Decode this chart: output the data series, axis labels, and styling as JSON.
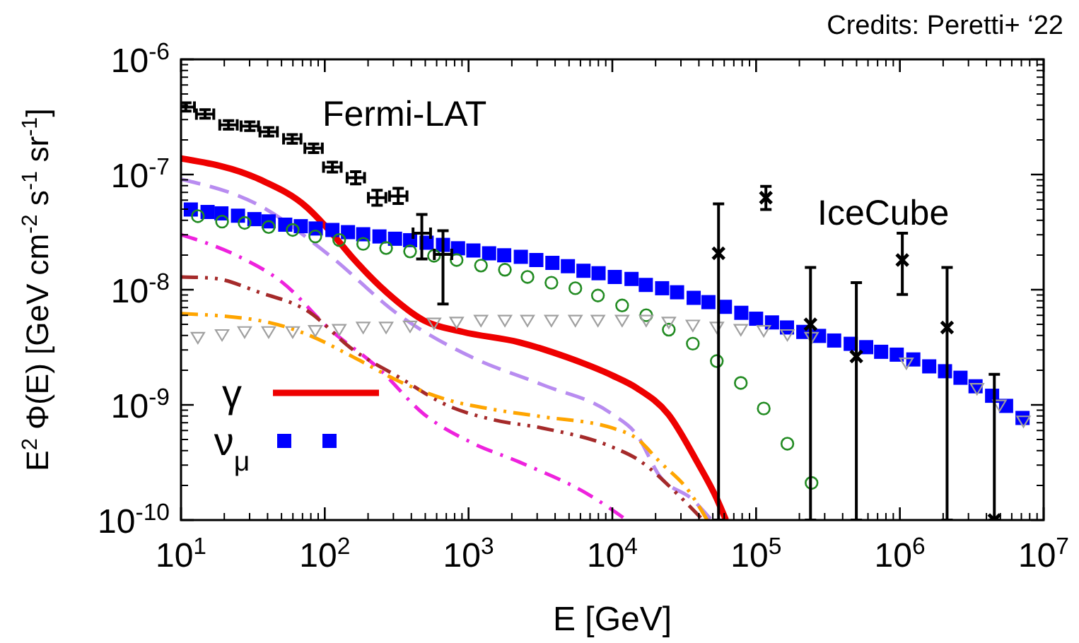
{
  "chart_data": {
    "type": "line",
    "xlabel": "E [GeV]",
    "ylabel": "E$^{2}$ Φ(E) [GeV cm$^{-2}$ s$^{-1}$ sr$^{-1}$]",
    "log": "xy",
    "xlim": [
      10,
      10000000
    ],
    "ylim": [
      1e-10,
      1e-06
    ],
    "xticks": [
      {
        "value": 10,
        "label": "10$^{1}$"
      },
      {
        "value": 100,
        "label": "10$^{2}$"
      },
      {
        "value": 1000,
        "label": "10$^{3}$"
      },
      {
        "value": 10000,
        "label": "10$^{4}$"
      },
      {
        "value": 100000,
        "label": "10$^{5}$"
      },
      {
        "value": 1000000,
        "label": "10$^{6}$"
      },
      {
        "value": 10000000,
        "label": "10$^{7}$"
      }
    ],
    "yticks": [
      {
        "value": 1e-10,
        "label": "10$^{-10}$"
      },
      {
        "value": 1e-09,
        "label": "10$^{-9}$"
      },
      {
        "value": 1e-08,
        "label": "10$^{-8}$"
      },
      {
        "value": 1e-07,
        "label": "10$^{-7}$"
      },
      {
        "value": 1e-06,
        "label": "10$^{-6}$"
      }
    ],
    "legend": "bottom left",
    "annotations": [
      "Credits: Peretti+ ‘22",
      "Fermi-LAT",
      "IceCube"
    ],
    "series": [
      {
        "color": "#b88cf0",
        "line_style": "dashed",
        "x": [
          10,
          35,
          107,
          330,
          1050,
          3240,
          10000,
          14800,
          21400,
          36300,
          49000
        ],
        "values": [
          9.1e-08,
          5.4e-08,
          2e-08,
          6e-09,
          2.6e-09,
          1.5e-09,
          8.3e-10,
          5.5e-10,
          2.4e-10,
          1.5e-10,
          1e-10
        ]
      },
      {
        "color": "#ee22dd",
        "line_style": "dashdot",
        "x": [
          10,
          24,
          51,
          107,
          234,
          490,
          1050,
          2240,
          6920,
          12600
        ],
        "values": [
          3e-08,
          2e-08,
          1.15e-08,
          4.6e-09,
          2.1e-09,
          8.3e-10,
          4.7e-10,
          3.2e-10,
          1.65e-10,
          1e-10
        ]
      },
      {
        "color": "#a52a2a",
        "line_style": "dashdotdot",
        "x": [
          10,
          16.6,
          35,
          75,
          158,
          330,
          724,
          1510,
          3240,
          10000,
          14800,
          28800,
          42700
        ],
        "values": [
          1.29e-08,
          1.26e-08,
          9.5e-09,
          6.6e-09,
          3e-09,
          1.73e-09,
          9.8e-10,
          7.4e-10,
          6.3e-10,
          4.3e-10,
          3.4e-10,
          1.65e-10,
          1e-10
        ]
      },
      {
        "color": "#ffa500",
        "line_style": "dashdotdot",
        "x": [
          10,
          35,
          75,
          158,
          330,
          724,
          1510,
          3240,
          10000,
          14800,
          21400,
          33900,
          45700
        ],
        "values": [
          6.2e-09,
          5.4e-09,
          4.1e-09,
          2.6e-09,
          1.6e-09,
          1.1e-09,
          9.1e-10,
          7.9e-10,
          6.3e-10,
          5.1e-10,
          3.2e-10,
          1.8e-10,
          1e-10
        ]
      },
      {
        "name": "γ",
        "color": "#ee0000",
        "line_style": "solid",
        "x": [
          10,
          35,
          75,
          107,
          158,
          269,
          490,
          912,
          2240,
          4790,
          10000,
          14800,
          24500,
          38900,
          53700,
          61700
        ],
        "values": [
          1.38e-07,
          9.1e-08,
          5.2e-08,
          3.3e-08,
          1.86e-08,
          9.5e-09,
          5.4e-09,
          4.3e-09,
          3.5e-09,
          2.6e-09,
          1.8e-09,
          1.4e-09,
          8.3e-10,
          3.2e-10,
          1.5e-10,
          1e-10
        ]
      },
      {
        "type": "scatter",
        "name": "ν$_{μ}$",
        "color": "#0000ff",
        "marker": "square",
        "x": [
          11.7,
          15.3,
          19.1,
          24.9,
          32.4,
          40.7,
          53.1,
          68.1,
          86.5,
          113,
          145,
          185,
          240,
          308,
          392,
          511,
          664,
          845,
          1080,
          1390,
          1770,
          2310,
          2960,
          3830,
          4910,
          6300,
          8020,
          10400,
          13600,
          17100,
          22200,
          28200,
          36800,
          46600,
          60700,
          78900,
          100000,
          129000,
          164000,
          213000,
          274000,
          349000,
          455000,
          583000,
          741000,
          951000,
          1240000,
          1600000,
          2060000,
          2640000,
          3360000,
          4380000,
          5480000,
          7130000
        ],
        "values": [
          4.97e-08,
          4.73e-08,
          4.6e-08,
          4.39e-08,
          4.1e-08,
          3.92e-08,
          3.67e-08,
          3.56e-08,
          3.4e-08,
          3.3e-08,
          3.16e-08,
          3.03e-08,
          2.9e-08,
          2.77e-08,
          2.69e-08,
          2.56e-08,
          2.45e-08,
          2.29e-08,
          2.19e-08,
          2.07e-08,
          1.99e-08,
          1.93e-08,
          1.81e-08,
          1.71e-08,
          1.6e-08,
          1.46e-08,
          1.39e-08,
          1.29e-08,
          1.24e-08,
          1.1e-08,
          1.03e-08,
          9.5e-09,
          8.5e-09,
          7.8e-09,
          7.1e-09,
          6.3e-09,
          5.6e-09,
          5.2e-09,
          4.7e-09,
          4.3e-09,
          3.97e-09,
          3.62e-09,
          3.39e-09,
          3.17e-09,
          2.89e-09,
          2.73e-09,
          2.48e-09,
          2.16e-09,
          1.96e-09,
          1.72e-09,
          1.45e-09,
          1.2e-09,
          9.8e-10,
          7.7e-10
        ]
      },
      {
        "type": "scatter",
        "color": "#228b22",
        "marker": "circle",
        "x": [
          13.1,
          19.3,
          27.7,
          40.7,
          59.8,
          85.9,
          126,
          185,
          267,
          392,
          575,
          826,
          1220,
          1790,
          2570,
          3770,
          5530,
          7940,
          11700,
          17200,
          24700,
          36300,
          53300,
          78300,
          113000,
          165000,
          243000
        ],
        "values": [
          4.35e-08,
          3.9e-08,
          3.8e-08,
          3.5e-08,
          3.3e-08,
          2.9e-08,
          2.7e-08,
          2.5e-08,
          2.3e-08,
          2.15e-08,
          1.97e-08,
          1.81e-08,
          1.62e-08,
          1.49e-08,
          1.29e-08,
          1.15e-08,
          1.03e-08,
          8.9e-09,
          7.3e-09,
          6e-09,
          4.5e-09,
          3.4e-09,
          2.4e-09,
          1.55e-09,
          9.3e-10,
          4.6e-10,
          2.1e-10
        ]
      },
      {
        "type": "scatter",
        "color": "#a0a0a0",
        "marker": "triangle",
        "x": [
          13.1,
          19.3,
          27.7,
          40.7,
          59.8,
          85.9,
          126,
          185,
          267,
          392,
          575,
          826,
          1220,
          1790,
          2570,
          3770,
          5530,
          7940,
          11700,
          17200,
          24700,
          36300,
          53300,
          78300,
          113000,
          165000,
          243000,
          1110000,
          3440000,
          4930000,
          7240000
        ],
        "values": [
          3.83e-09,
          4.05e-09,
          4.3e-09,
          4.3e-09,
          4.3e-09,
          4.4e-09,
          4.5e-09,
          4.7e-09,
          4.7e-09,
          4.8e-09,
          5.1e-09,
          5.2e-09,
          5.4e-09,
          5.4e-09,
          5.4e-09,
          5.4e-09,
          5.4e-09,
          5.4e-09,
          5.4e-09,
          5.4e-09,
          5.2e-09,
          4.9e-09,
          4.7e-09,
          4.5e-09,
          4.4e-09,
          4.05e-09,
          3.83e-09,
          2.3e-09,
          1.38e-09,
          9.9e-10,
          7.2e-10
        ]
      },
      {
        "type": "scatter",
        "color": "#000000",
        "x": [
          10.8,
          14.7,
          21.4,
          30.1,
          40.7,
          59.4,
          83.6,
          113,
          164,
          231,
          324,
          473,
          664
        ],
        "values": [
          3.86e-07,
          3.35e-07,
          2.7e-07,
          2.63e-07,
          2.35e-07,
          2.04e-07,
          1.69e-07,
          1.16e-07,
          9.4e-08,
          6.3e-08,
          6.5e-08,
          3.1e-08,
          2.03e-08
        ],
        "errors": [
          [
            3.55e-07,
            4.2e-07
          ],
          [
            3.08e-07,
            3.65e-07
          ],
          [
            2.48e-07,
            2.94e-07
          ],
          [
            2.41e-07,
            2.86e-07
          ],
          [
            2.16e-07,
            2.56e-07
          ],
          [
            1.87e-07,
            2.22e-07
          ],
          [
            1.55e-07,
            1.84e-07
          ],
          [
            1.05e-07,
            1.28e-07
          ],
          [
            8.3e-08,
            1.06e-07
          ],
          [
            5.4e-08,
            7.3e-08
          ],
          [
            5.6e-08,
            7.6e-08
          ],
          [
            1.85e-08,
            4.5e-08
          ],
          [
            7.5e-09,
            3.25e-08
          ]
        ],
        "xerrors": [
          [
            10,
            12.4
          ],
          [
            12.8,
            16.9
          ],
          [
            18.6,
            24.6
          ],
          [
            26.2,
            34.6
          ],
          [
            35.4,
            46.8
          ],
          [
            51.7,
            68.3
          ],
          [
            72.7,
            96.1
          ],
          [
            98,
            130
          ],
          [
            143,
            189
          ],
          [
            201,
            266
          ],
          [
            282,
            373
          ],
          [
            411,
            544
          ],
          [
            578,
            764
          ]
        ]
      },
      {
        "type": "scatter",
        "color": "#000000",
        "marker": "cross",
        "x": [
          54800,
          117000,
          239000,
          498000,
          1040000,
          2130000,
          4540000
        ],
        "values": [
          2.07e-08,
          6.3e-08,
          5e-09,
          2.63e-09,
          1.81e-08,
          4.7e-09,
          1e-10
        ],
        "errors": [
          [
            1e-10,
            5.56e-08
          ],
          [
            4.97e-08,
            7.9e-08
          ],
          [
            1e-10,
            1.56e-08
          ],
          [
            1e-10,
            1.15e-08
          ],
          [
            9.1e-09,
            3.1e-08
          ],
          [
            1e-10,
            1.56e-08
          ],
          [
            1e-10,
            1.84e-09
          ]
        ]
      }
    ]
  }
}
